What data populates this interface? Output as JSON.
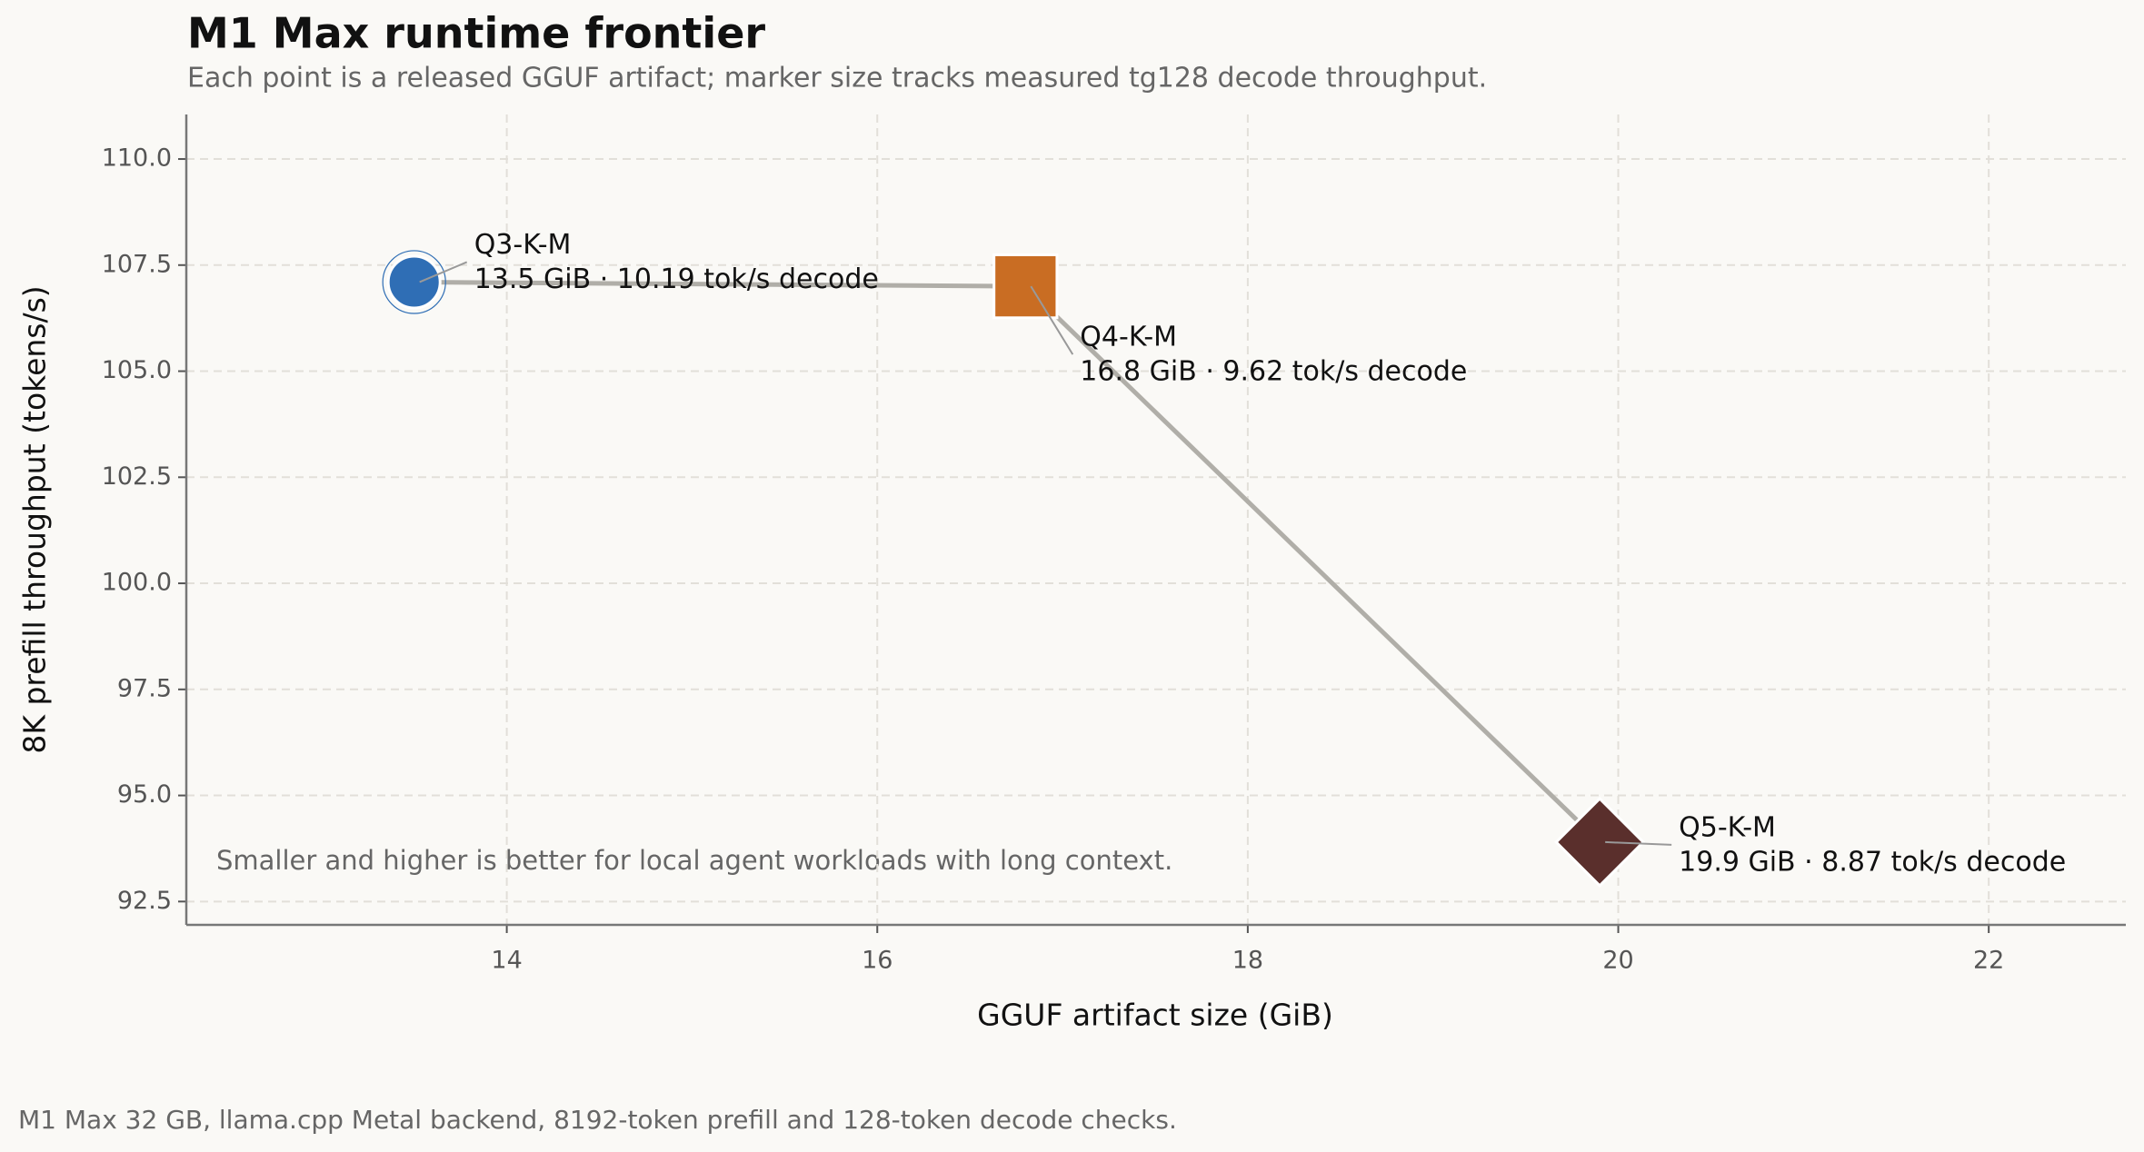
{
  "chart_data": {
    "type": "scatter",
    "title": "M1 Max runtime frontier",
    "subtitle": "Each point is a released GGUF artifact; marker size tracks measured tg128 decode throughput.",
    "x_label": "GGUF artifact size (GiB)",
    "y_label": "8K prefill throughput (tokens/s)",
    "annotation": "Smaller and higher is better for local agent workloads with long context.",
    "footnote": "M1 Max 32 GB, llama.cpp Metal backend, 8192-token prefill and 128-token decode checks.",
    "points": [
      {
        "name": "Q3-K-M",
        "x": 13.5,
        "y": 107.1,
        "size": 10.19,
        "color": "#2f6eb5",
        "marker": "circle",
        "label": "13.5 GiB · 10.19 tok/s decode"
      },
      {
        "name": "Q4-K-M",
        "x": 16.8,
        "y": 107.0,
        "size": 9.62,
        "color": "#c96d23",
        "marker": "square",
        "label": "16.8 GiB · 9.62 tok/s decode"
      },
      {
        "name": "Q5-K-M",
        "x": 19.9,
        "y": 93.9,
        "size": 8.87,
        "color": "#5a2f2c",
        "marker": "diamond",
        "label": "19.9 GiB · 8.87 tok/s decode"
      }
    ],
    "line_color": "#b0aea8",
    "xlim": [
      12.27,
      22.74
    ],
    "ylim": [
      91.95,
      111.05
    ],
    "xticks": [
      14,
      16,
      18,
      20,
      22
    ],
    "yticks": [
      {
        "value": 92.5,
        "label": "92.5"
      },
      {
        "value": 95,
        "label": "95.0"
      },
      {
        "value": 97.5,
        "label": "97.5"
      },
      {
        "value": 100,
        "label": "100.0"
      },
      {
        "value": 102.5,
        "label": "102.5"
      },
      {
        "value": 105,
        "label": "105.0"
      },
      {
        "value": 107.5,
        "label": "107.5"
      },
      {
        "value": 110,
        "label": "110.0"
      }
    ],
    "grid": true
  }
}
